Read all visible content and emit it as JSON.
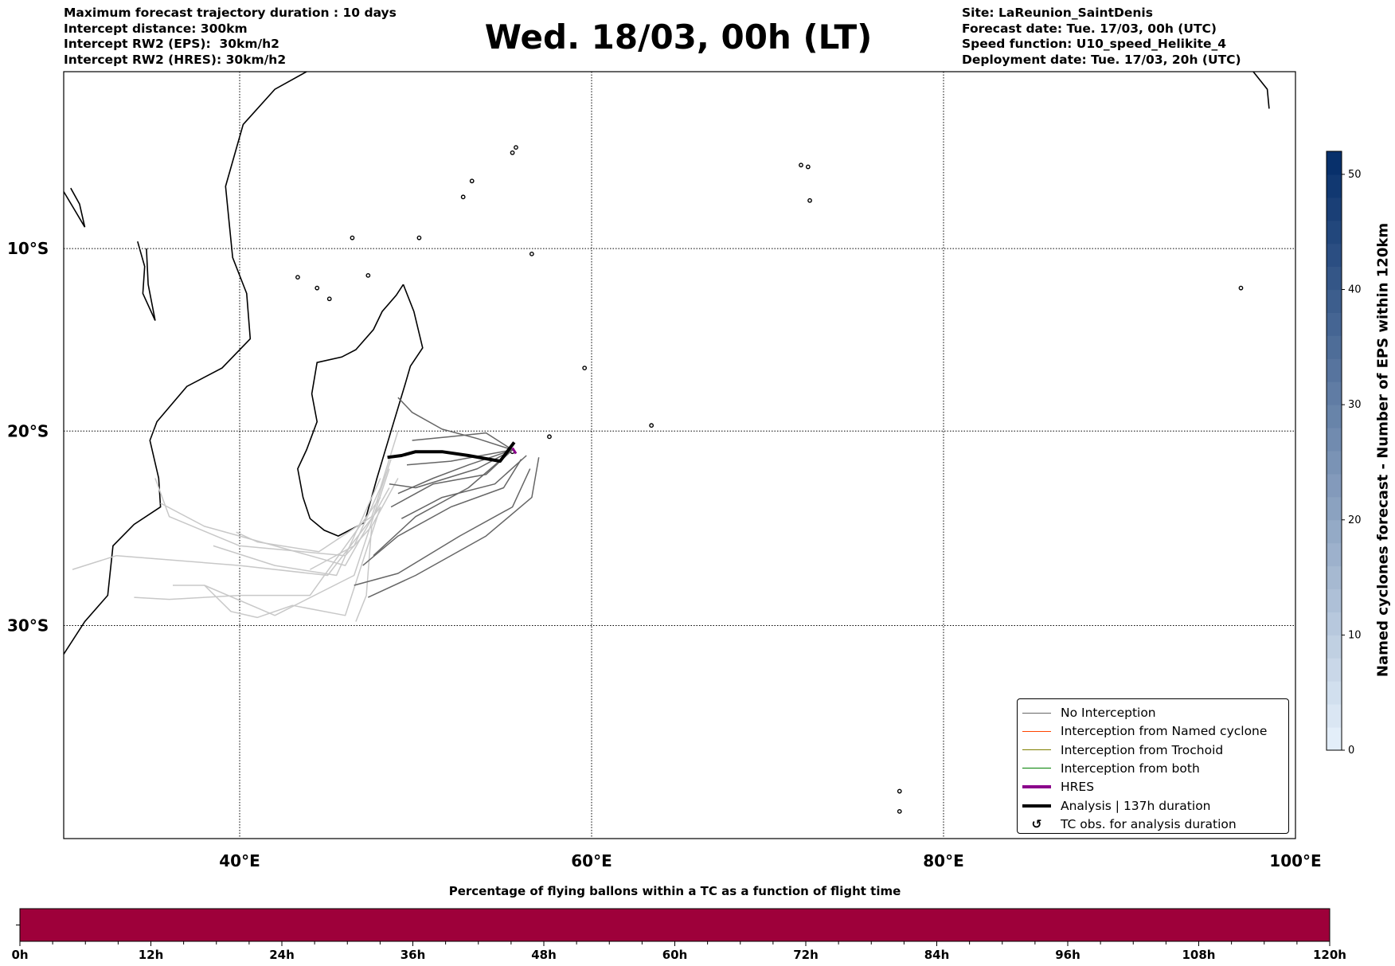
{
  "header": {
    "left": [
      "Maximum forecast trajectory duration : 10 days",
      "Intercept distance: 300km",
      "Intercept RW2 (EPS):  30km/h2",
      "Intercept RW2 (HRES): 30km/h2"
    ],
    "title": "Wed. 18/03, 00h (LT)",
    "right": [
      "Site: LaReunion_SaintDenis",
      "Forecast date: Tue. 17/03, 00h (UTC)",
      "Speed function: U10_speed_Helikite_4",
      "Deployment date: Tue. 17/03, 20h (UTC)"
    ]
  },
  "map": {
    "lon_range": [
      30,
      100
    ],
    "lat_range": [
      -40,
      0
    ],
    "lon_ticks": [
      {
        "v": 40,
        "label": "40°E"
      },
      {
        "v": 60,
        "label": "60°E"
      },
      {
        "v": 80,
        "label": "80°E"
      },
      {
        "v": 100,
        "label": "100°E"
      }
    ],
    "lat_ticks": [
      {
        "v": -10,
        "label": "10°S"
      },
      {
        "v": -20,
        "label": "20°S"
      },
      {
        "v": -30,
        "label": "30°S"
      }
    ],
    "colors": {
      "no_interception": "#666666",
      "no_interception_light": "#c8c8c8",
      "named_cyclone": "#ff4500",
      "trochoid": "#808000",
      "both": "#008000",
      "hres": "#8b008b",
      "analysis": "#000000"
    },
    "coastlines": [
      [
        [
          43.8,
          0
        ],
        [
          42,
          -1
        ],
        [
          40.2,
          -3
        ],
        [
          39.2,
          -6.5
        ],
        [
          39.4,
          -8.5
        ],
        [
          39.6,
          -10.5
        ],
        [
          40.4,
          -12.5
        ],
        [
          40.6,
          -15
        ],
        [
          39,
          -16.6
        ],
        [
          37,
          -17.6
        ],
        [
          35.3,
          -19.5
        ],
        [
          34.9,
          -20.5
        ],
        [
          35.4,
          -22.5
        ],
        [
          35.5,
          -24
        ],
        [
          34,
          -24.9
        ],
        [
          32.8,
          -26
        ],
        [
          32.5,
          -28.5
        ],
        [
          31.2,
          -29.8
        ],
        [
          30,
          -31.4
        ]
      ],
      [
        [
          49.3,
          -12
        ],
        [
          49.9,
          -13.5
        ],
        [
          50.4,
          -15.5
        ],
        [
          49.7,
          -16.5
        ],
        [
          49.4,
          -17.5
        ],
        [
          48.6,
          -20
        ],
        [
          47.8,
          -22.5
        ],
        [
          47.1,
          -24.8
        ],
        [
          45.6,
          -25.5
        ],
        [
          44.8,
          -25.2
        ],
        [
          44,
          -24.6
        ],
        [
          43.6,
          -23.5
        ],
        [
          43.3,
          -22
        ],
        [
          43.8,
          -21
        ],
        [
          44.4,
          -19.5
        ],
        [
          44.1,
          -18
        ],
        [
          44.4,
          -16.3
        ],
        [
          45.8,
          -16
        ],
        [
          46.6,
          -15.6
        ],
        [
          47.6,
          -14.5
        ],
        [
          48.1,
          -13.5
        ],
        [
          48.9,
          -12.6
        ],
        [
          49.3,
          -12
        ]
      ],
      [
        [
          30,
          -6.8
        ],
        [
          30.6,
          -7.8
        ],
        [
          31.2,
          -8.8
        ],
        [
          30.9,
          -7.5
        ],
        [
          30.4,
          -6.6
        ]
      ],
      [
        [
          34.2,
          -9.6
        ],
        [
          34.6,
          -11
        ],
        [
          34.5,
          -12.5
        ],
        [
          35.2,
          -14
        ],
        [
          34.8,
          -12
        ],
        [
          34.7,
          -10
        ]
      ],
      [
        [
          97.6,
          0
        ],
        [
          98.4,
          -1
        ],
        [
          98.5,
          -2.1
        ]
      ]
    ],
    "islands": [
      [
        55.5,
        -21.1
      ],
      [
        57.6,
        -20.3
      ],
      [
        43.3,
        -11.6
      ],
      [
        44.4,
        -12.2
      ],
      [
        45.1,
        -12.8
      ],
      [
        46.4,
        -9.4
      ],
      [
        55.5,
        -4.6
      ],
      [
        55.7,
        -4.3
      ],
      [
        72.4,
        -7.3
      ],
      [
        71.9,
        -5.3
      ],
      [
        72.3,
        -5.4
      ],
      [
        96.9,
        -12.2
      ],
      [
        77.5,
        -37.8
      ],
      [
        77.5,
        -38.7
      ],
      [
        63.4,
        -19.7
      ],
      [
        47.3,
        -11.5
      ],
      [
        59.6,
        -16.6
      ],
      [
        56.6,
        -10.3
      ],
      [
        53.2,
        -6.2
      ],
      [
        52.7,
        -7.1
      ],
      [
        50.2,
        -9.4
      ]
    ],
    "ensemble_tracks_dark": [
      [
        [
          55.5,
          -21
        ],
        [
          53.5,
          -20.4
        ],
        [
          51.5,
          -19.9
        ],
        [
          49.8,
          -19
        ],
        [
          49,
          -18.2
        ]
      ],
      [
        [
          55.5,
          -21
        ],
        [
          54,
          -20.1
        ],
        [
          52,
          -20.3
        ],
        [
          49.8,
          -20.5
        ]
      ],
      [
        [
          55.5,
          -21
        ],
        [
          53,
          -21.8
        ],
        [
          51,
          -22.5
        ],
        [
          49,
          -23.3
        ]
      ],
      [
        [
          55.5,
          -21
        ],
        [
          54,
          -22.3
        ],
        [
          51,
          -22.8
        ],
        [
          48.6,
          -24
        ]
      ],
      [
        [
          56,
          -21.5
        ],
        [
          55,
          -23
        ],
        [
          52,
          -24
        ],
        [
          49,
          -25.5
        ],
        [
          47,
          -27
        ]
      ],
      [
        [
          56.5,
          -22
        ],
        [
          55.5,
          -24
        ],
        [
          52.5,
          -25.5
        ],
        [
          49,
          -27.4
        ],
        [
          46.5,
          -28
        ]
      ],
      [
        [
          57,
          -21.4
        ],
        [
          56.6,
          -23.5
        ],
        [
          54,
          -25.5
        ],
        [
          50,
          -27.5
        ],
        [
          47.3,
          -28.6
        ]
      ],
      [
        [
          55.5,
          -21
        ],
        [
          53,
          -23
        ],
        [
          50,
          -24.5
        ],
        [
          47.6,
          -26.5
        ]
      ],
      [
        [
          55.5,
          -21
        ],
        [
          52,
          -21.6
        ],
        [
          49.5,
          -21.8
        ]
      ],
      [
        [
          55.5,
          -21
        ],
        [
          53.5,
          -22
        ],
        [
          50,
          -23
        ],
        [
          48.5,
          -22.8
        ]
      ],
      [
        [
          56.3,
          -21.3
        ],
        [
          54.5,
          -22.8
        ],
        [
          51.5,
          -23.5
        ],
        [
          49.2,
          -24.6
        ]
      ]
    ],
    "ensemble_tracks_light": [
      [
        [
          49,
          -22.5
        ],
        [
          47.5,
          -25
        ],
        [
          46,
          -26.5
        ],
        [
          40,
          -26
        ],
        [
          36,
          -24.5
        ],
        [
          35.2,
          -22.5
        ]
      ],
      [
        [
          48.5,
          -23
        ],
        [
          46,
          -27
        ],
        [
          42,
          -26
        ],
        [
          38,
          -25
        ],
        [
          35.5,
          -23.8
        ]
      ],
      [
        [
          48,
          -24
        ],
        [
          45,
          -27.5
        ],
        [
          40,
          -27
        ],
        [
          33,
          -26.5
        ],
        [
          30.5,
          -27.2
        ]
      ],
      [
        [
          48,
          -23.5
        ],
        [
          44,
          -28.5
        ],
        [
          40,
          -28.5
        ],
        [
          36,
          -28.7
        ],
        [
          34,
          -28.6
        ]
      ],
      [
        [
          48.5,
          -22
        ],
        [
          46.5,
          -27.5
        ],
        [
          42,
          -29.5
        ],
        [
          38,
          -28
        ],
        [
          36.2,
          -28
        ]
      ],
      [
        [
          48,
          -24
        ],
        [
          46,
          -29.5
        ],
        [
          43,
          -29
        ],
        [
          41,
          -29.6
        ],
        [
          39.5,
          -29.3
        ],
        [
          38,
          -28
        ]
      ],
      [
        [
          47.5,
          -25
        ],
        [
          47.2,
          -28.5
        ],
        [
          46.6,
          -29.8
        ]
      ],
      [
        [
          48,
          -22.5
        ],
        [
          45.5,
          -27.5
        ],
        [
          42,
          -27
        ],
        [
          38.5,
          -26
        ]
      ],
      [
        [
          49,
          -20
        ],
        [
          48,
          -23
        ],
        [
          46.5,
          -26
        ],
        [
          44,
          -27.2
        ]
      ],
      [
        [
          48.6,
          -21.5
        ],
        [
          47.5,
          -24.5
        ],
        [
          44.5,
          -26.3
        ],
        [
          41,
          -25.8
        ],
        [
          39.8,
          -25.3
        ]
      ]
    ],
    "analysis_track": [
      [
        55.6,
        -20.6
      ],
      [
        54.8,
        -21.6
      ],
      [
        53,
        -21.3
      ],
      [
        51.5,
        -21.1
      ],
      [
        50,
        -21.1
      ],
      [
        49.2,
        -21.3
      ],
      [
        48.4,
        -21.4
      ]
    ],
    "hres_track": [
      [
        55.5,
        -20.9
      ],
      [
        55.7,
        -21.2
      ]
    ]
  },
  "legend": {
    "items": [
      {
        "label": "No Interception",
        "type": "line",
        "color": "#666666",
        "w": 1
      },
      {
        "label": "Interception from Named cyclone",
        "type": "line",
        "color": "#ff4500",
        "w": 1
      },
      {
        "label": "Interception from Trochoid",
        "type": "line",
        "color": "#808000",
        "w": 1
      },
      {
        "label": "Interception from both",
        "type": "line",
        "color": "#008000",
        "w": 1
      },
      {
        "label": "HRES",
        "type": "line",
        "color": "#8b008b",
        "w": 4
      },
      {
        "label": "Analysis | 137h duration",
        "type": "line",
        "color": "#000000",
        "w": 4
      },
      {
        "label": "TC obs. for analysis duration",
        "type": "symbol",
        "symbol": "↺"
      }
    ]
  },
  "colorbar": {
    "title": "Named cyclones forecast - Number of EPS within 120km",
    "range": [
      0,
      52
    ],
    "ticks": [
      "0",
      "10",
      "20",
      "30",
      "40",
      "50"
    ],
    "color_low": "#e3eef9",
    "color_high": "#08306b"
  },
  "flight_bar": {
    "title": "Percentage of flying ballons within a TC as a function of flight time",
    "ticks": [
      "0h",
      "12h",
      "24h",
      "36h",
      "48h",
      "60h",
      "72h",
      "84h",
      "96h",
      "108h",
      "120h"
    ],
    "fill_color": "#9e003a",
    "fill_fraction": 1.0
  }
}
